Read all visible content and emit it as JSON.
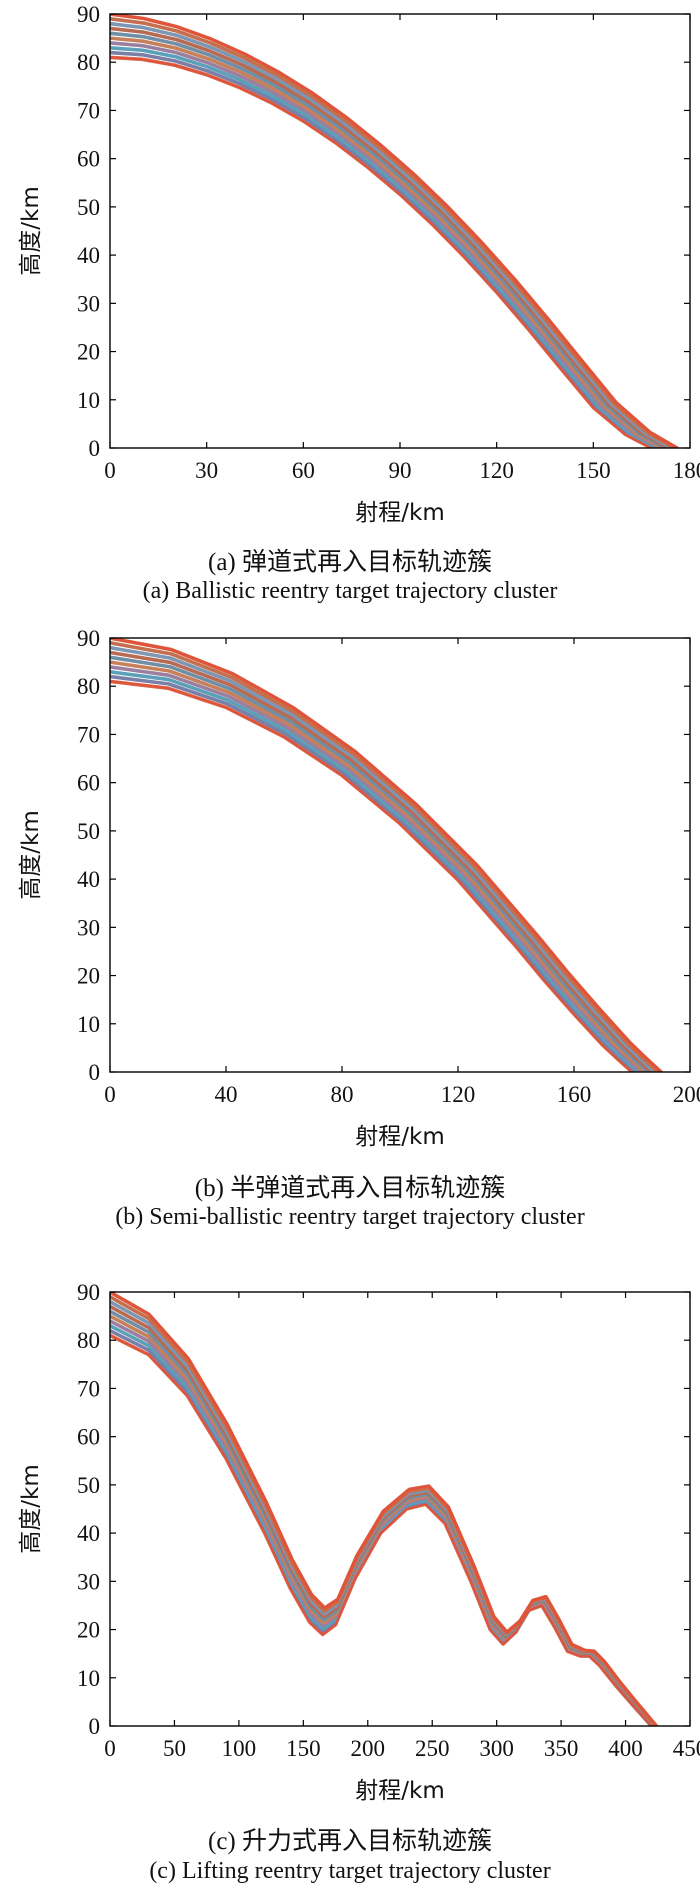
{
  "chart_data": [
    {
      "type": "line",
      "xlabel": "射程/km",
      "ylabel": "高度/km",
      "xlim": [
        0,
        180
      ],
      "ylim": [
        0,
        90
      ],
      "xticks": [
        0,
        30,
        60,
        90,
        120,
        150,
        180
      ],
      "yticks": [
        0,
        10,
        20,
        30,
        40,
        50,
        60,
        70,
        80,
        90
      ],
      "grid": false,
      "legend": "none",
      "series_count": 10,
      "initial_altitudes": [
        81,
        82,
        83,
        84,
        85,
        86,
        87,
        88,
        89,
        90
      ],
      "reference_trajectory": {
        "x": [
          0,
          10,
          20,
          30,
          40,
          50,
          60,
          70,
          80,
          90,
          100,
          110,
          120,
          130,
          140,
          150,
          160,
          168
        ],
        "y": [
          81,
          80.6,
          79.4,
          77.4,
          74.8,
          71.6,
          67.8,
          63.3,
          58.2,
          52.6,
          46.4,
          39.6,
          32.3,
          24.5,
          16.4,
          8.4,
          2.8,
          0
        ]
      },
      "range_spread_km": 8,
      "caption_cn": "(a) 弹道式再入目标轨迹簇",
      "caption_en": "(a) Ballistic reentry target trajectory cluster"
    },
    {
      "type": "line",
      "xlabel": "射程/km",
      "ylabel": "高度/km",
      "xlim": [
        0,
        200
      ],
      "ylim": [
        0,
        90
      ],
      "xticks": [
        0,
        40,
        80,
        120,
        160,
        200
      ],
      "yticks": [
        0,
        10,
        20,
        30,
        40,
        50,
        60,
        70,
        80,
        90
      ],
      "grid": false,
      "legend": "none",
      "series_count": 10,
      "initial_altitudes": [
        81,
        82,
        83,
        84,
        85,
        86,
        87,
        88,
        89,
        90
      ],
      "reference_trajectory": {
        "x": [
          0,
          20,
          40,
          60,
          80,
          100,
          120,
          140,
          150,
          160,
          170,
          175,
          180
        ],
        "y": [
          81,
          79.6,
          75.6,
          69.5,
          61.5,
          51.5,
          39.8,
          26.0,
          18.8,
          12.0,
          5.5,
          2.7,
          0
        ]
      },
      "range_spread_km": 10,
      "caption_cn": "(b) 半弹道式再入目标轨迹簇",
      "caption_en": "(b) Semi-ballistic reentry target trajectory cluster"
    },
    {
      "type": "line",
      "xlabel": "射程/km",
      "ylabel": "高度/km",
      "xlim": [
        0,
        450
      ],
      "ylim": [
        0,
        90
      ],
      "xticks": [
        0,
        50,
        100,
        150,
        200,
        250,
        300,
        350,
        400,
        450
      ],
      "yticks": [
        0,
        10,
        20,
        30,
        40,
        50,
        60,
        70,
        80,
        90
      ],
      "grid": false,
      "legend": "none",
      "series_count": 10,
      "initial_altitudes": [
        81,
        82,
        83,
        84,
        85,
        86,
        87,
        88,
        89,
        90
      ],
      "reference_trajectory": {
        "x": [
          0,
          30,
          60,
          90,
          120,
          140,
          155,
          165,
          175,
          190,
          210,
          230,
          245,
          260,
          280,
          295,
          305,
          315,
          325,
          335,
          345,
          355,
          365,
          372,
          380,
          392,
          405,
          420
        ],
        "y": [
          81,
          77,
          68.5,
          55.5,
          40,
          28.5,
          21.5,
          19,
          21,
          30.5,
          40,
          45,
          46,
          42,
          30,
          20,
          17,
          19.5,
          24,
          25,
          20.5,
          15.5,
          14.5,
          14.5,
          12.5,
          8.5,
          4.5,
          0
        ]
      },
      "range_spread_km": 4,
      "caption_cn": "(c) 升力式再入目标轨迹簇",
      "caption_en": "(c) Lifting reentry target trajectory cluster"
    }
  ],
  "colors": {
    "curve_edge": "#e0523a",
    "curve_fill": [
      "#d96a4c",
      "#7a7fa8",
      "#5aa0b8",
      "#9a7fa0",
      "#c8805a",
      "#6f8fa6",
      "#b86a52",
      "#7d96b4",
      "#c4704e",
      "#dd5b3c"
    ],
    "axes": "#000000"
  }
}
